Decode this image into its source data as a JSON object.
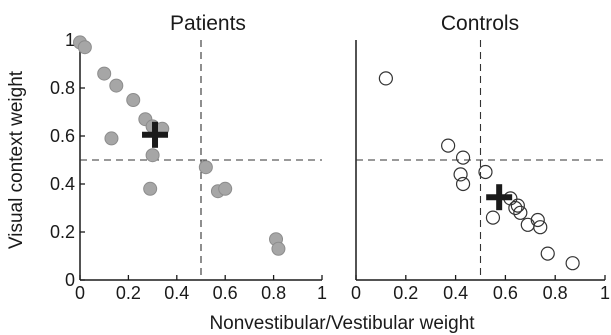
{
  "figure": {
    "xlabel": "Nonvestibular/Vestibular weight",
    "ylabel": "Visual context weight"
  },
  "chart_data": [
    {
      "type": "scatter",
      "title": "Patients",
      "xlim": [
        0,
        1
      ],
      "ylim": [
        0,
        1
      ],
      "xticks": [
        "0",
        "0.2",
        "0.4",
        "0.6",
        "0.8",
        "1"
      ],
      "yticks": [
        "0",
        "0.2",
        "0.4",
        "0.6",
        "0.8",
        "1"
      ],
      "reference_lines": {
        "x": 0.5,
        "y": 0.5
      },
      "marker": {
        "style": "filled-circle",
        "fill": "#a6a6a6",
        "stroke": "#8c8c8c"
      },
      "mean_marker": {
        "style": "plus",
        "color": "#1a1a1a",
        "x": 0.31,
        "y": 0.605
      },
      "points": [
        {
          "x": 0.0,
          "y": 0.99
        },
        {
          "x": 0.02,
          "y": 0.97
        },
        {
          "x": 0.1,
          "y": 0.86
        },
        {
          "x": 0.15,
          "y": 0.81
        },
        {
          "x": 0.22,
          "y": 0.75
        },
        {
          "x": 0.27,
          "y": 0.67
        },
        {
          "x": 0.13,
          "y": 0.59
        },
        {
          "x": 0.3,
          "y": 0.64
        },
        {
          "x": 0.34,
          "y": 0.63
        },
        {
          "x": 0.3,
          "y": 0.52
        },
        {
          "x": 0.29,
          "y": 0.38
        },
        {
          "x": 0.52,
          "y": 0.47
        },
        {
          "x": 0.57,
          "y": 0.37
        },
        {
          "x": 0.6,
          "y": 0.38
        },
        {
          "x": 0.81,
          "y": 0.17
        },
        {
          "x": 0.82,
          "y": 0.13
        }
      ]
    },
    {
      "type": "scatter",
      "title": "Controls",
      "xlim": [
        0,
        1
      ],
      "ylim": [
        0,
        1
      ],
      "xticks": [
        "0",
        "0.2",
        "0.4",
        "0.6",
        "0.8",
        "1"
      ],
      "yticks": [],
      "reference_lines": {
        "x": 0.5,
        "y": 0.5
      },
      "marker": {
        "style": "open-circle",
        "fill": "none",
        "stroke": "#333333"
      },
      "mean_marker": {
        "style": "plus",
        "color": "#1a1a1a",
        "x": 0.575,
        "y": 0.345
      },
      "points": [
        {
          "x": 0.12,
          "y": 0.84
        },
        {
          "x": 0.37,
          "y": 0.56
        },
        {
          "x": 0.43,
          "y": 0.51
        },
        {
          "x": 0.42,
          "y": 0.44
        },
        {
          "x": 0.43,
          "y": 0.4
        },
        {
          "x": 0.52,
          "y": 0.45
        },
        {
          "x": 0.55,
          "y": 0.26
        },
        {
          "x": 0.62,
          "y": 0.34
        },
        {
          "x": 0.64,
          "y": 0.3
        },
        {
          "x": 0.65,
          "y": 0.31
        },
        {
          "x": 0.66,
          "y": 0.28
        },
        {
          "x": 0.69,
          "y": 0.23
        },
        {
          "x": 0.73,
          "y": 0.25
        },
        {
          "x": 0.74,
          "y": 0.22
        },
        {
          "x": 0.77,
          "y": 0.11
        },
        {
          "x": 0.87,
          "y": 0.07
        }
      ]
    }
  ]
}
